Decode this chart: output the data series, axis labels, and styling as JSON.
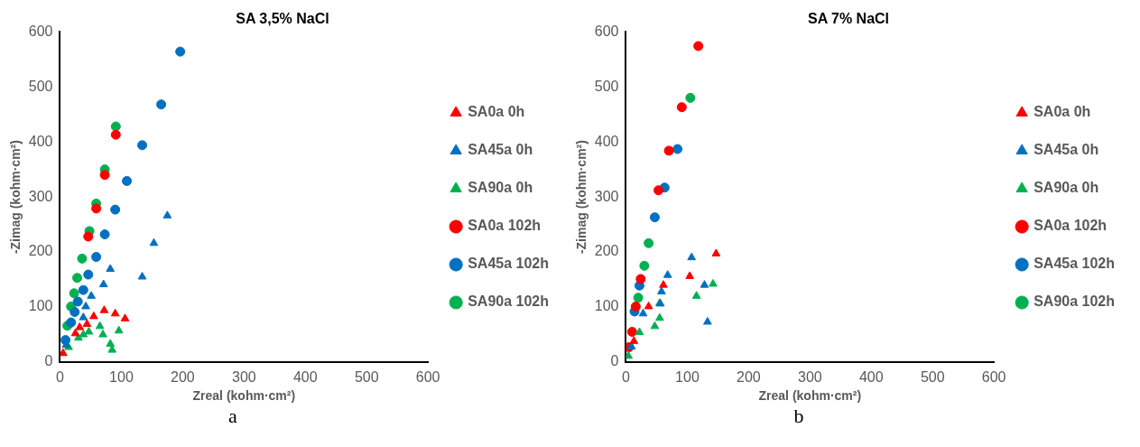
{
  "chart_data": [
    {
      "type": "scatter",
      "title": "SA 3,5% NaCl",
      "xlabel": "Zreal (kohm·cm²)",
      "ylabel": "-Zimag (kohm·cm²)",
      "xlim": [
        0,
        600
      ],
      "ylim": [
        0,
        600
      ],
      "xticks": [
        0,
        100,
        200,
        300,
        400,
        500,
        600
      ],
      "yticks": [
        0,
        100,
        200,
        300,
        400,
        500,
        600
      ],
      "grid": false,
      "legend": "right",
      "annotations": [
        "a"
      ],
      "series": [
        {
          "name": "SA0a 0h",
          "color": "#ff0000",
          "marker": "triangle",
          "x": [
            5,
            25,
            32,
            44,
            55,
            72,
            90,
            106
          ],
          "values": [
            16,
            52,
            63,
            69,
            83,
            94,
            88,
            79
          ]
        },
        {
          "name": "SA45a 0h",
          "color": "#0070c0",
          "marker": "triangle",
          "x": [
            10,
            38,
            42,
            51,
            71,
            82,
            134,
            153,
            175
          ],
          "values": [
            31,
            81,
            101,
            120,
            141,
            169,
            155,
            216,
            266
          ]
        },
        {
          "name": "SA90a 0h",
          "color": "#00b050",
          "marker": "triangle",
          "x": [
            14,
            30,
            38,
            47,
            65,
            70,
            96,
            82,
            85
          ],
          "values": [
            27,
            44,
            50,
            55,
            65,
            50,
            57,
            33,
            22
          ]
        },
        {
          "name": "SA0a 102h",
          "color": "#ff0000",
          "marker": "circle",
          "x": [
            46,
            59,
            73,
            91
          ],
          "values": [
            228,
            279,
            340,
            413
          ]
        },
        {
          "name": "SA45a 102h",
          "color": "#0070c0",
          "marker": "circle",
          "x": [
            9,
            18,
            24,
            29,
            38,
            46,
            59,
            73,
            90,
            109,
            134,
            165,
            196
          ],
          "values": [
            40,
            72,
            91,
            110,
            131,
            159,
            191,
            232,
            277,
            329,
            394,
            468,
            564
          ]
        },
        {
          "name": "SA90a 102h",
          "color": "#00b050",
          "marker": "circle",
          "x": [
            12,
            18,
            23,
            28,
            36,
            48,
            59,
            73,
            91
          ],
          "values": [
            66,
            101,
            125,
            153,
            188,
            238,
            288,
            350,
            428
          ]
        }
      ]
    },
    {
      "type": "scatter",
      "title": "SA 7% NaCl",
      "xlabel": "Zreal (kohm·cm²)",
      "ylabel": "-Zimag (kohm·cm²)",
      "xlim": [
        0,
        600
      ],
      "ylim": [
        0,
        600
      ],
      "xticks": [
        0,
        100,
        200,
        300,
        400,
        500,
        600
      ],
      "yticks": [
        0,
        100,
        200,
        300,
        400,
        500,
        600
      ],
      "grid": false,
      "legend": "right",
      "annotations": [
        "b"
      ],
      "series": [
        {
          "name": "SA0a 0h",
          "color": "#ff0000",
          "marker": "triangle",
          "x": [
            13,
            37,
            61,
            104,
            147
          ],
          "values": [
            38,
            101,
            140,
            156,
            197
          ]
        },
        {
          "name": "SA45a 0h",
          "color": "#0070c0",
          "marker": "triangle",
          "x": [
            9,
            28,
            56,
            58,
            68,
            107,
            128,
            133
          ],
          "values": [
            28,
            88,
            106,
            128,
            158,
            190,
            140,
            73
          ]
        },
        {
          "name": "SA90a 0h",
          "color": "#00b050",
          "marker": "triangle",
          "x": [
            4,
            22,
            47,
            55,
            55,
            115,
            142
          ],
          "values": [
            11,
            54,
            65,
            80,
            107,
            120,
            142
          ]
        },
        {
          "name": "SA0a 102h",
          "color": "#ff0000",
          "marker": "circle",
          "x": [
            5,
            10,
            16,
            24,
            53,
            70,
            91,
            118
          ],
          "values": [
            27,
            55,
            101,
            151,
            312,
            384,
            463,
            574
          ]
        },
        {
          "name": "SA45a 102h",
          "color": "#0070c0",
          "marker": "circle",
          "x": [
            14,
            22,
            47,
            63,
            84
          ],
          "values": [
            92,
            139,
            263,
            317,
            387
          ]
        },
        {
          "name": "SA90a 102h",
          "color": "#00b050",
          "marker": "circle",
          "x": [
            20,
            30,
            37,
            105
          ],
          "values": [
            117,
            175,
            216,
            480
          ]
        }
      ]
    }
  ]
}
